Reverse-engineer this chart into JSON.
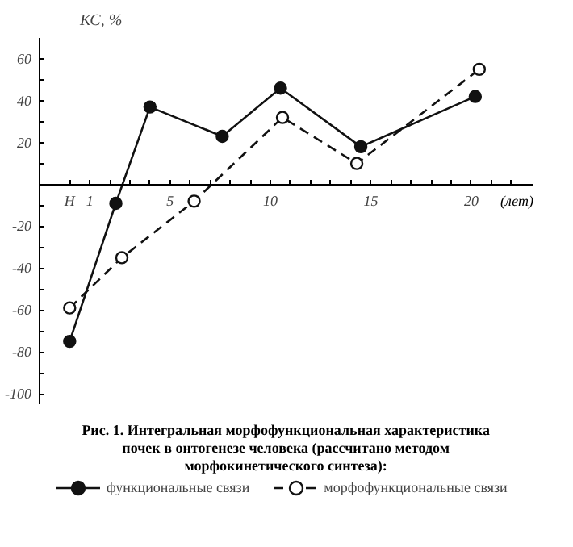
{
  "chart_data": {
    "type": "line",
    "ylabel": "КС, %",
    "xlabel": "(лет)",
    "xlim": [
      -1.5,
      23.1
    ],
    "ylim": [
      -105,
      70
    ],
    "xticks": [
      {
        "value": 0,
        "label": "Н"
      },
      1,
      {
        "value": 2,
        "label": null
      },
      {
        "value": 3,
        "label": null
      },
      {
        "value": 4,
        "label": null
      },
      5,
      {
        "value": 6,
        "label": null
      },
      {
        "value": 7,
        "label": null
      },
      {
        "value": 8,
        "label": null
      },
      {
        "value": 9,
        "label": null
      },
      10,
      {
        "value": 11,
        "label": null
      },
      {
        "value": 12,
        "label": null
      },
      {
        "value": 13,
        "label": null
      },
      {
        "value": 14,
        "label": null
      },
      15,
      {
        "value": 16,
        "label": null
      },
      {
        "value": 17,
        "label": null
      },
      {
        "value": 18,
        "label": null
      },
      {
        "value": 19,
        "label": null
      },
      20,
      {
        "value": 21,
        "label": null
      },
      {
        "value": 22,
        "label": null
      }
    ],
    "yticks": [
      -100,
      {
        "value": -90,
        "label": null
      },
      -80,
      {
        "value": -70,
        "label": null
      },
      -60,
      {
        "value": -50,
        "label": null
      },
      -40,
      {
        "value": -30,
        "label": null
      },
      -20,
      {
        "value": -10,
        "label": null
      },
      {
        "value": 0,
        "label": null
      },
      {
        "value": 10,
        "label": null
      },
      20,
      {
        "value": 30,
        "label": null
      },
      40,
      {
        "value": 50,
        "label": null
      },
      60
    ],
    "grid": false,
    "legend": "bottom",
    "series": [
      {
        "name": "функциональные связи",
        "color": "#111111",
        "line_style": "solid",
        "marker": "circle",
        "x": [
          0,
          2.3,
          4.0,
          7.6,
          10.5,
          14.5,
          20.2
        ],
        "values": [
          -75,
          -9,
          37,
          23,
          46,
          18,
          42
        ]
      },
      {
        "name": "морфофункциональные связи",
        "color": "#111111",
        "line_style": "dashed",
        "marker": "circle_open",
        "x": [
          0,
          2.6,
          6.2,
          10.6,
          14.3,
          20.4
        ],
        "values": [
          -59,
          -35,
          -8,
          32,
          10,
          55
        ]
      }
    ],
    "annotations": [
      "Рис. 1. Интегральная морфофункциональная характеристика почек в онтогенезе человека (рассчитано методом морфокинетического синтеза):"
    ]
  }
}
